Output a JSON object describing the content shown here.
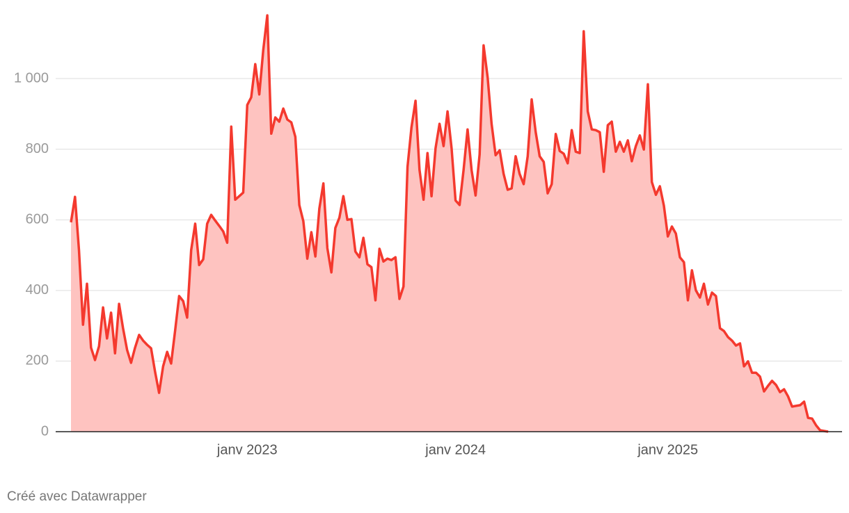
{
  "chart_data": {
    "type": "area",
    "categories": [
      null,
      null,
      null,
      null,
      null,
      null,
      null,
      null,
      null,
      null,
      null,
      null,
      null,
      null,
      null,
      null,
      null,
      null,
      null,
      null,
      null,
      null,
      null,
      null,
      null,
      null,
      null,
      null,
      null,
      null,
      null,
      null,
      null,
      null,
      null,
      null,
      null,
      null,
      null,
      null,
      null,
      null,
      null,
      null,
      "janv 2023",
      null,
      null,
      null,
      null,
      null,
      null,
      null,
      null,
      null,
      null,
      null,
      null,
      null,
      null,
      null,
      null,
      null,
      null,
      null,
      null,
      null,
      null,
      null,
      null,
      null,
      null,
      null,
      null,
      null,
      null,
      null,
      null,
      null,
      null,
      null,
      null,
      null,
      null,
      null,
      null,
      null,
      null,
      null,
      null,
      null,
      null,
      null,
      null,
      null,
      null,
      null,
      "janv 2024",
      null,
      null,
      null,
      null,
      null,
      null,
      null,
      null,
      null,
      null,
      null,
      null,
      null,
      null,
      null,
      null,
      null,
      null,
      null,
      null,
      null,
      null,
      null,
      null,
      null,
      null,
      null,
      null,
      null,
      null,
      null,
      null,
      null,
      null,
      null,
      null,
      null,
      null,
      null,
      null,
      null,
      null,
      null,
      null,
      null,
      null,
      null,
      null,
      null,
      null,
      null,
      null,
      "janv 2025",
      null,
      null,
      null,
      null,
      null,
      null,
      null,
      null,
      null,
      null,
      null,
      null,
      null,
      null,
      null,
      null,
      null,
      null,
      null,
      null,
      null,
      null,
      null,
      null,
      null,
      null,
      null,
      null,
      null,
      null,
      null,
      null,
      null,
      null,
      null,
      null,
      null,
      null,
      null,
      null
    ],
    "values": [
      593,
      665,
      514,
      303,
      419,
      238,
      203,
      242,
      352,
      264,
      337,
      222,
      362,
      293,
      232,
      195,
      238,
      274,
      258,
      246,
      236,
      169,
      110,
      185,
      226,
      193,
      287,
      384,
      370,
      323,
      514,
      589,
      472,
      488,
      589,
      614,
      598,
      583,
      567,
      535,
      864,
      657,
      667,
      677,
      925,
      947,
      1041,
      955,
      1081,
      1179,
      844,
      890,
      878,
      915,
      884,
      876,
      835,
      642,
      596,
      490,
      565,
      496,
      632,
      703,
      520,
      451,
      577,
      606,
      667,
      600,
      602,
      510,
      494,
      549,
      474,
      466,
      372,
      518,
      482,
      490,
      486,
      494,
      376,
      411,
      750,
      862,
      937,
      742,
      657,
      789,
      667,
      803,
      872,
      809,
      907,
      803,
      655,
      642,
      740,
      856,
      740,
      669,
      785,
      1094,
      1004,
      872,
      783,
      797,
      730,
      685,
      689,
      780,
      730,
      701,
      780,
      941,
      848,
      780,
      764,
      675,
      701,
      843,
      795,
      787,
      760,
      854,
      793,
      789,
      1134,
      907,
      856,
      854,
      848,
      736,
      868,
      878,
      793,
      821,
      793,
      825,
      766,
      809,
      839,
      799,
      984,
      707,
      671,
      695,
      640,
      553,
      581,
      561,
      494,
      480,
      372,
      457,
      400,
      380,
      419,
      360,
      394,
      384,
      293,
      285,
      268,
      258,
      244,
      250,
      185,
      199,
      167,
      167,
      156,
      114,
      130,
      144,
      132,
      112,
      120,
      100,
      71,
      73,
      75,
      85,
      39,
      37,
      18,
      4,
      2,
      0
    ],
    "color": "#f4392e",
    "fill": "#fec3c0",
    "ylim": [
      0,
      1180
    ],
    "yticks": [
      0,
      200,
      400,
      600,
      800,
      {
        "value": 1000,
        "label": "1 000"
      }
    ],
    "grid": true
  },
  "credit": "Créé avec Datawrapper"
}
